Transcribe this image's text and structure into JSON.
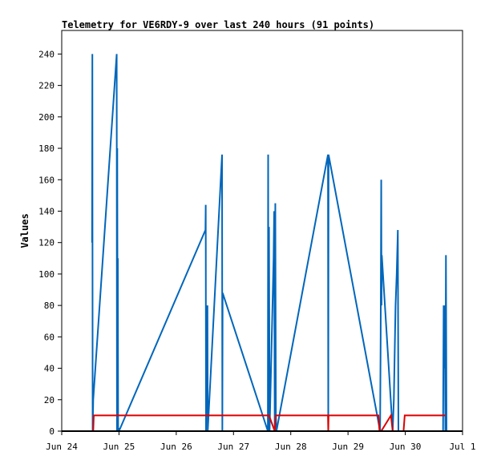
{
  "chart_data": {
    "type": "line",
    "title": "Telemetry for VE6RDY-9 over last 240 hours (91 points)",
    "xlabel": "",
    "ylabel": "Values",
    "ylim": [
      0,
      255
    ],
    "xlim": [
      0,
      7
    ],
    "x_unit": "days since Jun 24",
    "x_ticks": [
      {
        "value": 0,
        "label": "Jun 24"
      },
      {
        "value": 1,
        "label": "Jun 25"
      },
      {
        "value": 2,
        "label": "Jun 26"
      },
      {
        "value": 3,
        "label": "Jun 27"
      },
      {
        "value": 4,
        "label": "Jun 28"
      },
      {
        "value": 5,
        "label": "Jun 29"
      },
      {
        "value": 6,
        "label": "Jun 30"
      },
      {
        "value": 7,
        "label": "Jul 1"
      }
    ],
    "y_ticks": [
      0,
      20,
      40,
      60,
      80,
      100,
      120,
      140,
      160,
      180,
      200,
      220,
      240
    ],
    "grid": false,
    "legend": "none",
    "colors": {
      "series_blue": "#0066bb",
      "series_red": "#dd0000",
      "series_black": "#000000",
      "frame": "#000000"
    },
    "series": [
      {
        "color": "#0066bb",
        "x": [
          0.53,
          0.535,
          0.54,
          0.55,
          0.96,
          0.965,
          0.97,
          0.975,
          0.98,
          0.985,
          0.99,
          0.995,
          1.0,
          2.51,
          2.515,
          2.52,
          2.53,
          2.54,
          2.545,
          2.55,
          2.8,
          2.805,
          2.81,
          3.6,
          3.605,
          3.61,
          3.62,
          3.63,
          3.7,
          3.71,
          3.72,
          3.73,
          3.74,
          3.75,
          4.65,
          4.655,
          4.66,
          5.55,
          5.56,
          5.57,
          5.58,
          5.585,
          5.59,
          5.78,
          5.8,
          5.83,
          5.85,
          5.87,
          5.88,
          5.89,
          6.66,
          6.67,
          6.68,
          6.69,
          6.7,
          6.71,
          6.72
        ],
        "y": [
          120,
          240,
          0,
          20,
          240,
          0,
          180,
          45,
          110,
          0,
          0,
          2,
          0,
          128,
          144,
          0,
          80,
          40,
          80,
          0,
          176,
          0,
          88,
          0,
          176,
          0,
          130,
          0,
          110,
          140,
          0,
          145,
          10,
          0,
          176,
          0,
          176,
          2,
          0,
          60,
          160,
          80,
          112,
          0,
          20,
          80,
          100,
          128,
          0,
          0,
          0,
          80,
          40,
          80,
          0,
          112,
          0
        ]
      },
      {
        "color": "#dd0000",
        "x": [
          0.55,
          0.56,
          3.6,
          3.62,
          3.72,
          3.74,
          4.65,
          4.655,
          4.66,
          5.53,
          5.55,
          5.58,
          5.75,
          5.78,
          5.8,
          5.97,
          5.99,
          6.0,
          6.7
        ],
        "y": [
          0,
          10,
          10,
          10,
          0,
          10,
          10,
          0,
          10,
          10,
          0,
          0,
          10,
          0,
          0,
          0,
          10,
          10,
          10
        ]
      },
      {
        "color": "#000000",
        "x": [
          0,
          7
        ],
        "y": [
          0,
          0
        ]
      }
    ]
  }
}
